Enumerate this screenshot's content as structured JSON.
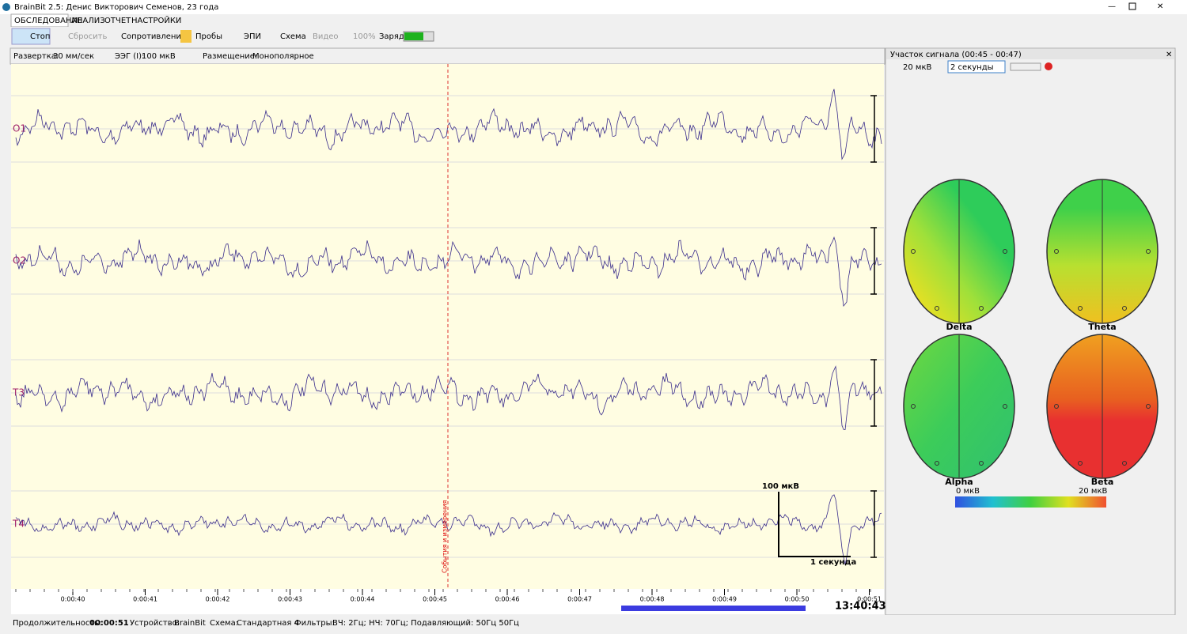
{
  "window": {
    "title": "BrainBit 2.5: Денис Викторович Семенов, 23 года"
  },
  "menu": [
    "ОБСЛЕДОВАНИЕ",
    "АНАЛИЗ",
    "ОТЧЕТ",
    "НАСТРОЙКИ"
  ],
  "toolbar": {
    "stop": "Стоп",
    "reset": "Сбросить",
    "resistance": "Сопротивление",
    "probes": "Пробы",
    "epi": "ЭПИ",
    "scheme": "Схема",
    "video": "Видео",
    "zoom": "100%",
    "charge": "Заряд:"
  },
  "settings": {
    "sweep_label": "Развертка:",
    "sweep": "30 мм/сек",
    "eeg_label": "ЭЭГ (I):",
    "eeg": "100 мкВ",
    "placement_label": "Размещение:",
    "placement": "Монополярное"
  },
  "channels": [
    "O1",
    "O2",
    "T3",
    "T4"
  ],
  "event_label": "События и измерения",
  "scale": {
    "amplitude": "100 мкВ",
    "time": "1 секунда"
  },
  "time_ticks": [
    "0:00:40",
    "0:00:41",
    "0:00:42",
    "0:00:43",
    "0:00:44",
    "0:00:45",
    "0:00:46",
    "0:00:47",
    "0:00:48",
    "0:00:49",
    "0:00:50",
    "0:00:51"
  ],
  "clock": "13:40:43",
  "panel": {
    "title": "Участок сигнала (00:45 - 00:47)",
    "amplitude": "20 мкВ",
    "window": "2 секунды",
    "maps": [
      "Delta",
      "Theta",
      "Alpha",
      "Beta"
    ],
    "scale_min": "0 мкВ",
    "scale_max": "20 мкВ"
  },
  "status": {
    "duration_label": "Продолжительность:",
    "duration": "00:00:51",
    "device_label": "Устройство:",
    "device": "BrainBit",
    "scheme_label": "Схема:",
    "scheme": "Стандартная 4",
    "filters_label": "Фильтры:",
    "filters": "ВЧ: 2Гц; НЧ: 70Гц; Подавляющий: 50Гц 50Гц"
  }
}
